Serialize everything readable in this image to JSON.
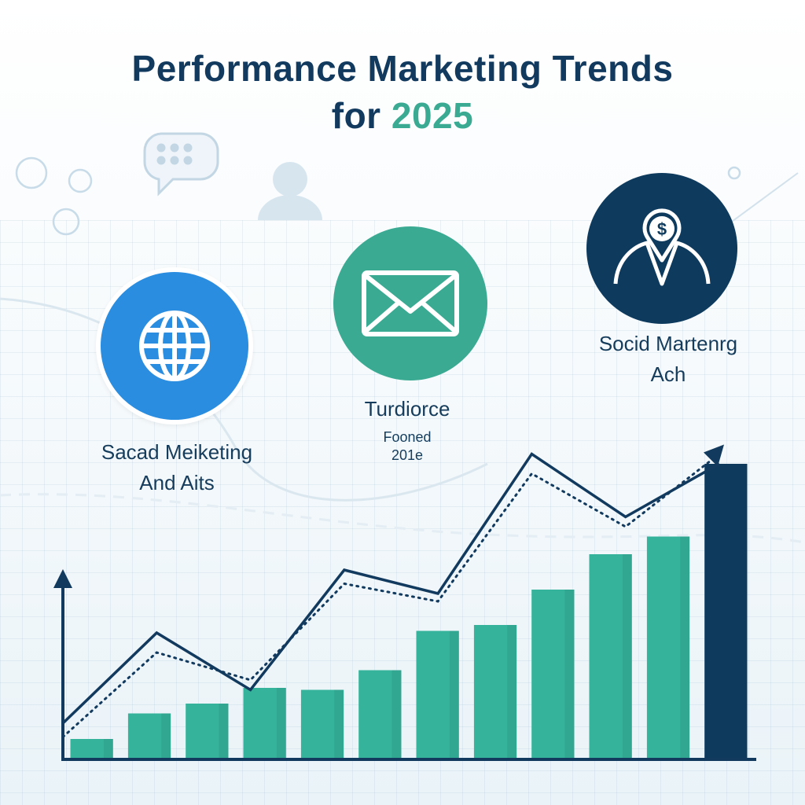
{
  "header": {
    "title_line1": "Performance Marketing Trends",
    "title_line2_prefix": "for",
    "title_line2_year": "2025"
  },
  "callouts": [
    {
      "icon": "globe-icon",
      "lines": [
        "Sacad Meiketing",
        "And Aits"
      ]
    },
    {
      "icon": "envelope-icon",
      "lines": [
        "Turdiorce",
        "Fooned",
        "201e"
      ]
    },
    {
      "icon": "money-location-icon",
      "lines": [
        "Socid Martenrg",
        "Ach"
      ]
    }
  ],
  "colors": {
    "title": "#123a5e",
    "accent": "#3aaa92",
    "bar": "#35b39b",
    "bar_highlight": "#0e3a5e",
    "globe_circle": "#2a8de0",
    "envelope_circle": "#3aaa92",
    "money_circle": "#0e3a5e",
    "line": "#123a5e"
  },
  "chart_data": {
    "type": "bar",
    "title": "",
    "xlabel": "",
    "ylabel": "",
    "categories": [
      "",
      "",
      "",
      "",
      "",
      "",
      "",
      "",
      "",
      "",
      "",
      ""
    ],
    "values": [
      10,
      23,
      28,
      36,
      35,
      45,
      65,
      68,
      86,
      104,
      113,
      150
    ],
    "highlight_index": 11,
    "ylim": [
      0,
      160
    ],
    "overlay_lines": [
      {
        "style": "solid",
        "values": [
          18,
          64,
          35,
          96,
          84,
          155,
          123,
          150
        ]
      },
      {
        "style": "dotted",
        "values": [
          11,
          54,
          40,
          89,
          80,
          145,
          118,
          155
        ]
      }
    ],
    "grid": true,
    "legend": "none"
  }
}
